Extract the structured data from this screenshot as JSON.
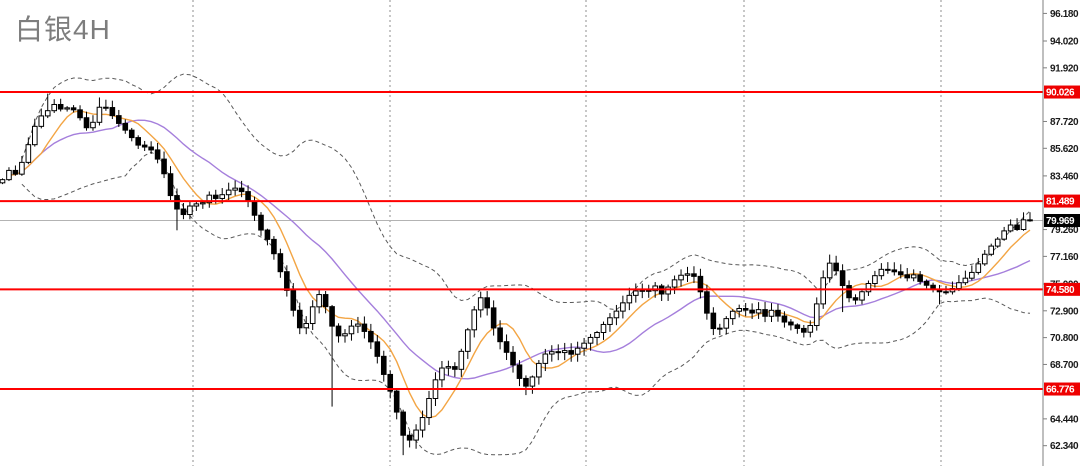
{
  "header": {
    "title": "白银4H"
  },
  "colors": {
    "background": "#ffffff",
    "title": "#7d7d7d",
    "level_line": "#ff0000",
    "level_label_bg": "#ee0000",
    "level_label_text": "#ffffff",
    "current_line": "#b3b3b3",
    "current_label_bg": "#000000",
    "current_label_text": "#ffffff",
    "grid": "#8f8f8f",
    "axis_line": "#7f7f7f",
    "tick_text": "#1a1a1a",
    "candle_up_fill": "#ffffff",
    "candle_down_fill": "#000000",
    "candle_stroke": "#000000",
    "ma_fast": "#f3a544",
    "ma_slow": "#a57fdc",
    "band": "#5a5a5a"
  },
  "chart_data": {
    "type": "candlestick",
    "title": "白银4H",
    "instrument": "白银",
    "timeframe": "4H",
    "ylim": [
      60.75,
      97.23
    ],
    "grid": "vertical-dashed",
    "y_axis": {
      "side": "right",
      "ticks": [
        {
          "label": "96.180",
          "price": 96.18
        },
        {
          "label": "94.020",
          "price": 94.02
        },
        {
          "label": "91.920",
          "price": 91.92
        },
        {
          "label": "87.720",
          "price": 87.72
        },
        {
          "label": "85.620",
          "price": 85.62
        },
        {
          "label": "83.460",
          "price": 83.46
        },
        {
          "label": "79.260",
          "price": 79.26
        },
        {
          "label": "77.160",
          "price": 77.16
        },
        {
          "label": "75.000",
          "price": 75.0
        },
        {
          "label": "72.900",
          "price": 72.9
        },
        {
          "label": "70.800",
          "price": 70.8
        },
        {
          "label": "68.700",
          "price": 68.7
        },
        {
          "label": "64.440",
          "price": 64.44
        },
        {
          "label": "62.340",
          "price": 62.34
        }
      ]
    },
    "horizontal_levels": [
      {
        "label": "90.026",
        "price": 90.026
      },
      {
        "label": "81.489",
        "price": 81.489
      },
      {
        "label": "74.580",
        "price": 74.58
      },
      {
        "label": "66.776",
        "price": 66.776
      }
    ],
    "current_price": {
      "label": "79.969",
      "price": 79.969
    },
    "vertical_gridlines_x": [
      193,
      390,
      586,
      744,
      941
    ],
    "candles": {
      "x_start": 2.5,
      "x_end": 1030,
      "count": 160,
      "price_path_anchors": [
        [
          2,
          83.1
        ],
        [
          8,
          83.9
        ],
        [
          14,
          83.4
        ],
        [
          22,
          84.6
        ],
        [
          30,
          86.2
        ],
        [
          38,
          88.0
        ],
        [
          46,
          88.5
        ],
        [
          54,
          89.0
        ],
        [
          62,
          88.6
        ],
        [
          70,
          89.0
        ],
        [
          78,
          88.2
        ],
        [
          86,
          87.2
        ],
        [
          94,
          87.8
        ],
        [
          101,
          89.1
        ],
        [
          108,
          88.6
        ],
        [
          116,
          87.9
        ],
        [
          124,
          87.1
        ],
        [
          132,
          86.4
        ],
        [
          140,
          85.8
        ],
        [
          148,
          85.7
        ],
        [
          156,
          85.0
        ],
        [
          163,
          84.0
        ],
        [
          170,
          82.0
        ],
        [
          176,
          80.9
        ],
        [
          182,
          80.3
        ],
        [
          188,
          81.0
        ],
        [
          194,
          81.5
        ],
        [
          200,
          80.8
        ],
        [
          206,
          81.9
        ],
        [
          212,
          82.1
        ],
        [
          218,
          81.5
        ],
        [
          224,
          82.1
        ],
        [
          230,
          82.4
        ],
        [
          236,
          82.6
        ],
        [
          242,
          82.2
        ],
        [
          248,
          81.4
        ],
        [
          254,
          80.5
        ],
        [
          260,
          79.4
        ],
        [
          266,
          78.7
        ],
        [
          273,
          77.5
        ],
        [
          280,
          76.1
        ],
        [
          287,
          74.5
        ],
        [
          294,
          72.7
        ],
        [
          301,
          71.3
        ],
        [
          308,
          72.2
        ],
        [
          314,
          73.5
        ],
        [
          320,
          74.2
        ],
        [
          327,
          73.0
        ],
        [
          334,
          71.3
        ],
        [
          341,
          70.7
        ],
        [
          348,
          71.3
        ],
        [
          355,
          72.2
        ],
        [
          362,
          71.5
        ],
        [
          369,
          70.7
        ],
        [
          376,
          69.7
        ],
        [
          383,
          68.1
        ],
        [
          390,
          66.6
        ],
        [
          397,
          64.9
        ],
        [
          404,
          63.0
        ],
        [
          411,
          62.7
        ],
        [
          418,
          63.8
        ],
        [
          425,
          65.0
        ],
        [
          432,
          66.9
        ],
        [
          439,
          68.0
        ],
        [
          446,
          68.9
        ],
        [
          453,
          68.0
        ],
        [
          460,
          69.3
        ],
        [
          467,
          71.2
        ],
        [
          474,
          73.0
        ],
        [
          480,
          74.0
        ],
        [
          487,
          73.1
        ],
        [
          494,
          71.5
        ],
        [
          501,
          70.4
        ],
        [
          508,
          69.4
        ],
        [
          515,
          68.3
        ],
        [
          522,
          67.3
        ],
        [
          528,
          66.9
        ],
        [
          535,
          68.1
        ],
        [
          542,
          69.3
        ],
        [
          549,
          69.9
        ],
        [
          556,
          69.4
        ],
        [
          563,
          69.9
        ],
        [
          570,
          69.5
        ],
        [
          577,
          69.9
        ],
        [
          584,
          70.3
        ],
        [
          591,
          70.9
        ],
        [
          598,
          71.3
        ],
        [
          605,
          71.9
        ],
        [
          612,
          72.5
        ],
        [
          619,
          73.2
        ],
        [
          626,
          73.8
        ],
        [
          633,
          74.3
        ],
        [
          640,
          74.7
        ],
        [
          647,
          74.3
        ],
        [
          654,
          74.9
        ],
        [
          661,
          74.2
        ],
        [
          668,
          74.8
        ],
        [
          675,
          75.3
        ],
        [
          682,
          75.7
        ],
        [
          689,
          75.9
        ],
        [
          696,
          75.5
        ],
        [
          702,
          73.9
        ],
        [
          709,
          72.2
        ],
        [
          716,
          71.2
        ],
        [
          723,
          71.8
        ],
        [
          730,
          72.7
        ],
        [
          737,
          73.2
        ],
        [
          744,
          73.0
        ],
        [
          751,
          72.6
        ],
        [
          758,
          73.1
        ],
        [
          765,
          72.5
        ],
        [
          772,
          72.9
        ],
        [
          779,
          72.4
        ],
        [
          786,
          72.0
        ],
        [
          793,
          71.7
        ],
        [
          800,
          71.3
        ],
        [
          807,
          71.2
        ],
        [
          814,
          72.5
        ],
        [
          821,
          74.8
        ],
        [
          828,
          76.8
        ],
        [
          835,
          76.3
        ],
        [
          842,
          74.9
        ],
        [
          849,
          73.9
        ],
        [
          856,
          73.8
        ],
        [
          863,
          74.5
        ],
        [
          870,
          75.1
        ],
        [
          877,
          75.9
        ],
        [
          884,
          76.4
        ],
        [
          891,
          75.8
        ],
        [
          898,
          76.0
        ],
        [
          905,
          75.4
        ],
        [
          912,
          75.8
        ],
        [
          919,
          75.2
        ],
        [
          926,
          75.0
        ],
        [
          933,
          74.6
        ],
        [
          940,
          74.3
        ],
        [
          947,
          74.4
        ],
        [
          954,
          74.8
        ],
        [
          961,
          75.2
        ],
        [
          968,
          75.5
        ],
        [
          975,
          76.3
        ],
        [
          982,
          77.0
        ],
        [
          989,
          77.7
        ],
        [
          996,
          78.4
        ],
        [
          1003,
          79.1
        ],
        [
          1010,
          79.6
        ],
        [
          1016,
          79.1
        ],
        [
          1023,
          80.1
        ],
        [
          1030,
          79.97
        ]
      ],
      "high_extremes": [
        [
          46,
          89.9
        ],
        [
          62,
          89.5
        ],
        [
          101,
          89.6
        ],
        [
          480,
          74.4
        ],
        [
          828,
          77.3
        ],
        [
          1023,
          80.6
        ]
      ],
      "low_extremes": [
        [
          180,
          79.2
        ],
        [
          332,
          65.4
        ],
        [
          403,
          61.6
        ],
        [
          414,
          62.1
        ],
        [
          527,
          66.3
        ],
        [
          845,
          72.8
        ],
        [
          941,
          73.4
        ]
      ]
    },
    "overlays": {
      "ma_fast_period": 7,
      "ma_slow_period": 18,
      "band_period": 20,
      "band_stddev": 2,
      "legend": "none"
    }
  },
  "layout": {
    "axis_x": 1043,
    "label_box": {
      "x": 1044,
      "width": 36,
      "height": 13
    }
  }
}
